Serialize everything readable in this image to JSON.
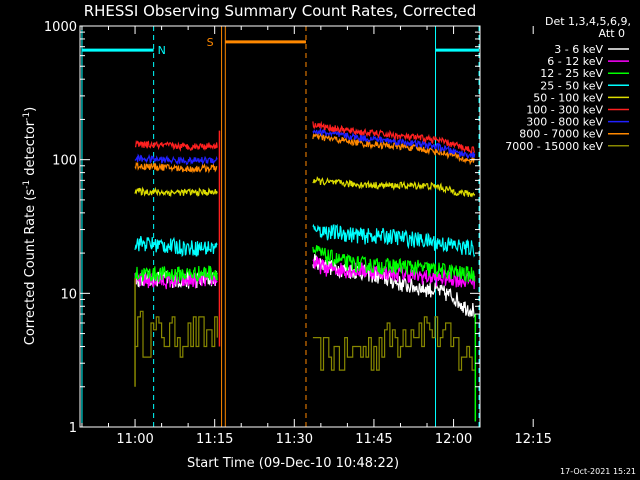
{
  "chart_data": {
    "type": "line",
    "title": "RHESSI Observing Summary Count Rates, Corrected",
    "xlabel": "Start Time (09-Dec-10 10:48:22)",
    "ylabel_main": "Corrected Count Rate (s",
    "ylabel_sup1": "-1",
    "ylabel_mid": " detector",
    "ylabel_sup2": "-1",
    "ylabel_end": ")",
    "yscale": "log",
    "ylim": [
      1,
      1000
    ],
    "xlim_minutes_after_start": [
      -10.37,
      64.98
    ],
    "x_ticks": [
      {
        "label": "11:00",
        "t": 0
      },
      {
        "label": "11:15",
        "t": 15
      },
      {
        "label": "11:30",
        "t": 30
      },
      {
        "label": "11:45",
        "t": 45
      },
      {
        "label": "12:00",
        "t": 60
      },
      {
        "label": "12:15",
        "t": 75
      }
    ],
    "y_ticks": [
      {
        "label": "1",
        "v": 1
      },
      {
        "label": "10",
        "v": 10
      },
      {
        "label": "100",
        "v": 100
      },
      {
        "label": "1000",
        "v": 1000
      }
    ],
    "legend_header": [
      "Det 1,3,4,5,6,9,",
      "Att 0"
    ],
    "series": [
      {
        "name": "3 - 6 keV",
        "color": "#ffffff",
        "segments": [
          {
            "x": [
              0,
              0.5,
              5,
              10,
              15.5
            ],
            "y": [
              13,
              13,
              13,
              12.5,
              13
            ]
          },
          {
            "x": [
              33.5,
              36,
              40,
              43,
              47,
              51,
              54,
              57,
              60,
              62,
              64
            ],
            "y": [
              18,
              16,
              15,
              14.5,
              13,
              11.5,
              11,
              10.5,
              9.5,
              8,
              7.5
            ]
          }
        ]
      },
      {
        "name": "6 - 12 keV",
        "color": "#ff00ff",
        "segments": [
          {
            "x": [
              0,
              0.5,
              5,
              10,
              15.5
            ],
            "y": [
              12.5,
              12.5,
              12.5,
              12.5,
              13
            ]
          },
          {
            "x": [
              33.5,
              36,
              40,
              43,
              47,
              51,
              54,
              57,
              60,
              62,
              64
            ],
            "y": [
              17,
              15.5,
              15,
              15,
              14.5,
              14,
              13.5,
              13,
              13,
              12.5,
              12.5
            ]
          }
        ]
      },
      {
        "name": "12 - 25 keV",
        "color": "#00ff00",
        "segments": [
          {
            "x": [
              0,
              0.5,
              5,
              10,
              15.5
            ],
            "y": [
              14,
              14,
              14,
              14,
              14.5
            ]
          },
          {
            "x": [
              33.5,
              36,
              40,
              43,
              47,
              51,
              54,
              57,
              60,
              62,
              64
            ],
            "y": [
              21,
              19,
              17,
              16.5,
              16,
              16,
              15.5,
              15,
              14.5,
              14,
              14
            ]
          }
        ]
      },
      {
        "name": "25 - 50 keV",
        "color": "#00ffff",
        "segments": [
          {
            "x": [
              0,
              0.5,
              5,
              10,
              15.5
            ],
            "y": [
              24,
              24,
              23,
              22,
              22
            ]
          },
          {
            "x": [
              33.5,
              36,
              40,
              43,
              47,
              51,
              54,
              57,
              60,
              62,
              64
            ],
            "y": [
              31,
              29,
              28,
              27,
              27,
              26,
              25,
              24,
              23,
              22,
              22
            ]
          }
        ]
      },
      {
        "name": "50 - 100 keV",
        "color": "#dddd00",
        "segments": [
          {
            "x": [
              0,
              0.5,
              5,
              10,
              15.5
            ],
            "y": [
              58,
              58,
              57,
              57,
              57
            ]
          },
          {
            "x": [
              33.5,
              36,
              40,
              43,
              47,
              51,
              54,
              57,
              60,
              62,
              64
            ],
            "y": [
              70,
              68,
              66,
              65,
              64,
              64,
              64,
              63,
              58,
              56,
              55
            ]
          }
        ]
      },
      {
        "name": "100 - 300 keV",
        "color": "#ff2020",
        "segments": [
          {
            "x": [
              0,
              0.5,
              5,
              10,
              15.5
            ],
            "y": [
              130,
              130,
              128,
              125,
              128
            ]
          },
          {
            "x": [
              33.5,
              36,
              40,
              43,
              47,
              51,
              54,
              57,
              60,
              62,
              64
            ],
            "y": [
              185,
              175,
              165,
              160,
              155,
              148,
              145,
              140,
              130,
              122,
              118
            ]
          }
        ]
      },
      {
        "name": "300 - 800 keV",
        "color": "#2020ff",
        "segments": [
          {
            "x": [
              0,
              0.5,
              5,
              10,
              15.5
            ],
            "y": [
              102,
              102,
              100,
              98,
              100
            ]
          },
          {
            "x": [
              33.5,
              36,
              40,
              43,
              47,
              51,
              54,
              57,
              60,
              62,
              64
            ],
            "y": [
              165,
              158,
              150,
              145,
              140,
              135,
              130,
              125,
              115,
              110,
              108
            ]
          }
        ]
      },
      {
        "name": "800 - 7000 keV",
        "color": "#ff8800",
        "segments": [
          {
            "x": [
              0,
              0.5,
              5,
              10,
              15.5
            ],
            "y": [
              90,
              90,
              88,
              85,
              87
            ]
          },
          {
            "x": [
              33.5,
              36,
              40,
              43,
              47,
              51,
              54,
              57,
              60,
              62,
              64
            ],
            "y": [
              150,
              145,
              138,
              132,
              128,
              125,
              120,
              115,
              108,
              100,
              98
            ]
          }
        ]
      },
      {
        "name": "7000 - 15000 keV",
        "color": "#888800",
        "segments": [
          {
            "x": [
              0,
              0.5,
              5,
              10,
              15.5
            ],
            "y": [
              5.5,
              5.5,
              5,
              5,
              5
            ]
          },
          {
            "x": [
              33.5,
              36,
              40,
              43,
              47,
              51,
              54,
              57,
              60,
              62,
              64
            ],
            "y": [
              3.5,
              3.5,
              3.5,
              3.8,
              4.5,
              5.5,
              6,
              5,
              4,
              3.5,
              3
            ]
          }
        ]
      }
    ],
    "annotations": {
      "N_label": "N",
      "S_label": "S",
      "attenuator_colors": {
        "cyan": "#00ffff",
        "orange": "#ff8800"
      }
    },
    "timestamp": "17-Oct-2021 15:21"
  }
}
